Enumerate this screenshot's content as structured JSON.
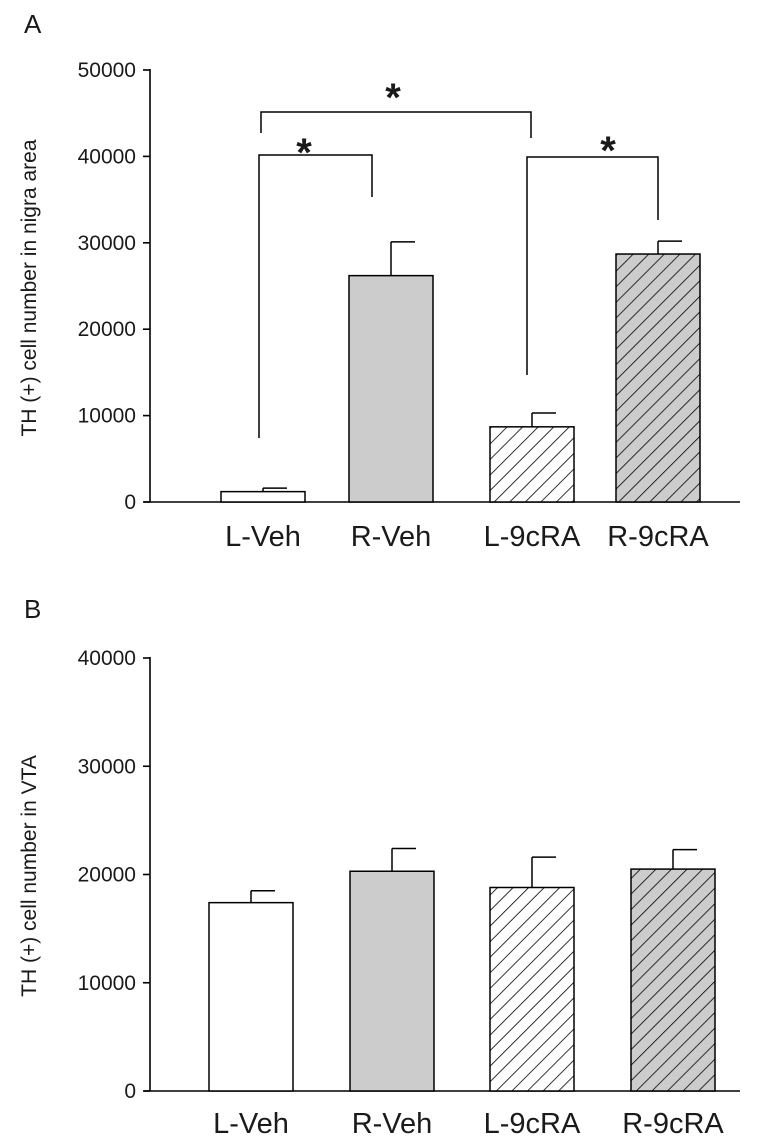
{
  "chart_data": [
    {
      "type": "bar",
      "panel": "A",
      "ylabel": "TH (+) cell number in nigra area",
      "ylim": [
        0,
        50000
      ],
      "yticks": [
        0,
        10000,
        20000,
        30000,
        40000,
        50000
      ],
      "categories": [
        "L-Veh",
        "R-Veh",
        "L-9cRA",
        "R-9cRA"
      ],
      "values": [
        1200,
        26200,
        8700,
        28700
      ],
      "errors": [
        400,
        3900,
        1600,
        1500
      ],
      "bar_styles": [
        "white",
        "gray",
        "hatch",
        "gray-hatch"
      ],
      "significance": [
        {
          "from": "L-Veh",
          "to": "R-Veh",
          "label": "*"
        },
        {
          "from": "L-Veh",
          "to": "L-9cRA",
          "label": "*"
        },
        {
          "from": "L-9cRA",
          "to": "R-9cRA",
          "label": "*"
        }
      ]
    },
    {
      "type": "bar",
      "panel": "B",
      "ylabel": "TH (+) cell number in VTA",
      "ylim": [
        0,
        40000
      ],
      "yticks": [
        0,
        10000,
        20000,
        30000,
        40000
      ],
      "categories": [
        "L-Veh",
        "R-Veh",
        "L-9cRA",
        "R-9cRA"
      ],
      "values": [
        17400,
        20300,
        18800,
        20500
      ],
      "errors": [
        1100,
        2100,
        2800,
        1800
      ],
      "bar_styles": [
        "white",
        "gray",
        "hatch",
        "gray-hatch"
      ]
    }
  ],
  "colors": {
    "white_bar": "#ffffff",
    "gray_bar": "#cccccc",
    "hatch_line": "#000000",
    "axis": "#000000"
  }
}
